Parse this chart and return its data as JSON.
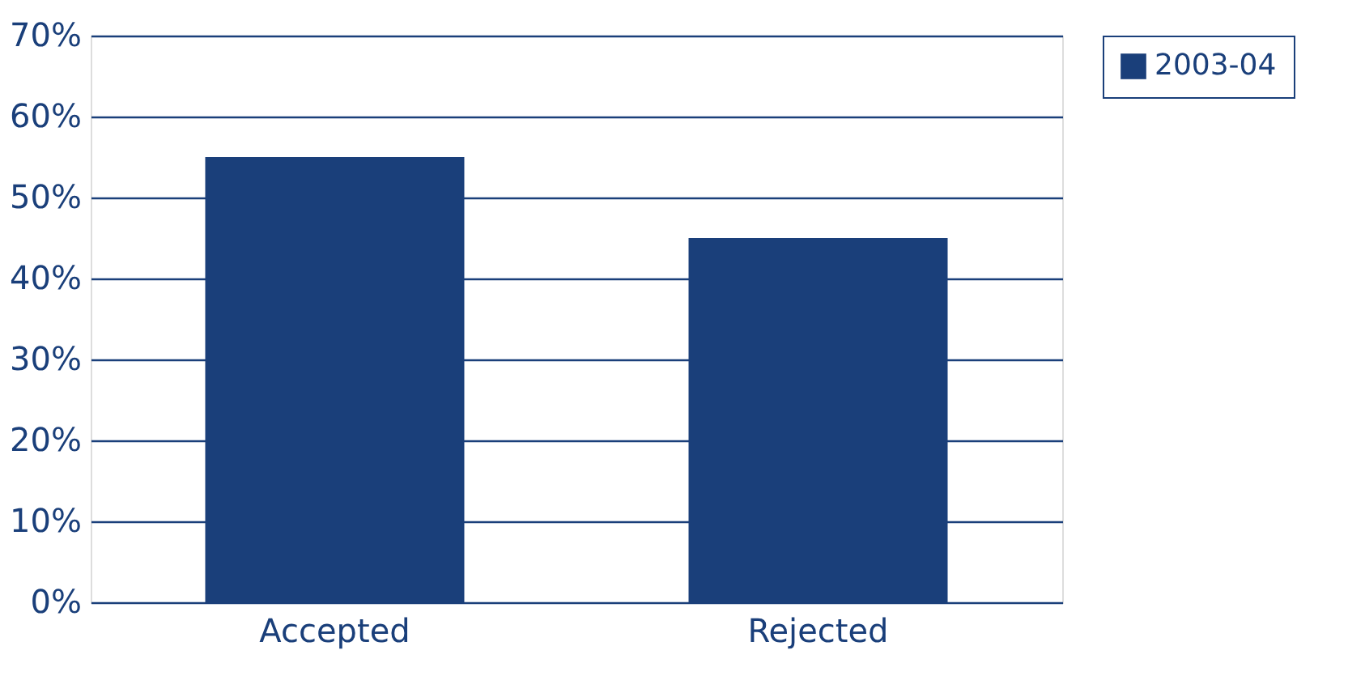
{
  "chart_data": {
    "type": "bar",
    "categories": [
      "Accepted",
      "Rejected"
    ],
    "series": [
      {
        "name": "2003-04",
        "color": "#1a3f7a",
        "values": [
          55,
          45
        ]
      }
    ],
    "ylim": [
      0,
      70
    ],
    "yticks": [
      {
        "value": 0,
        "label": "0%"
      },
      {
        "value": 10,
        "label": "10%"
      },
      {
        "value": 20,
        "label": "20%"
      },
      {
        "value": 30,
        "label": "30%"
      },
      {
        "value": 40,
        "label": "40%"
      },
      {
        "value": 50,
        "label": "50%"
      },
      {
        "value": 60,
        "label": "60%"
      },
      {
        "value": 70,
        "label": "70%"
      }
    ],
    "grid": "y",
    "legend": "right"
  }
}
